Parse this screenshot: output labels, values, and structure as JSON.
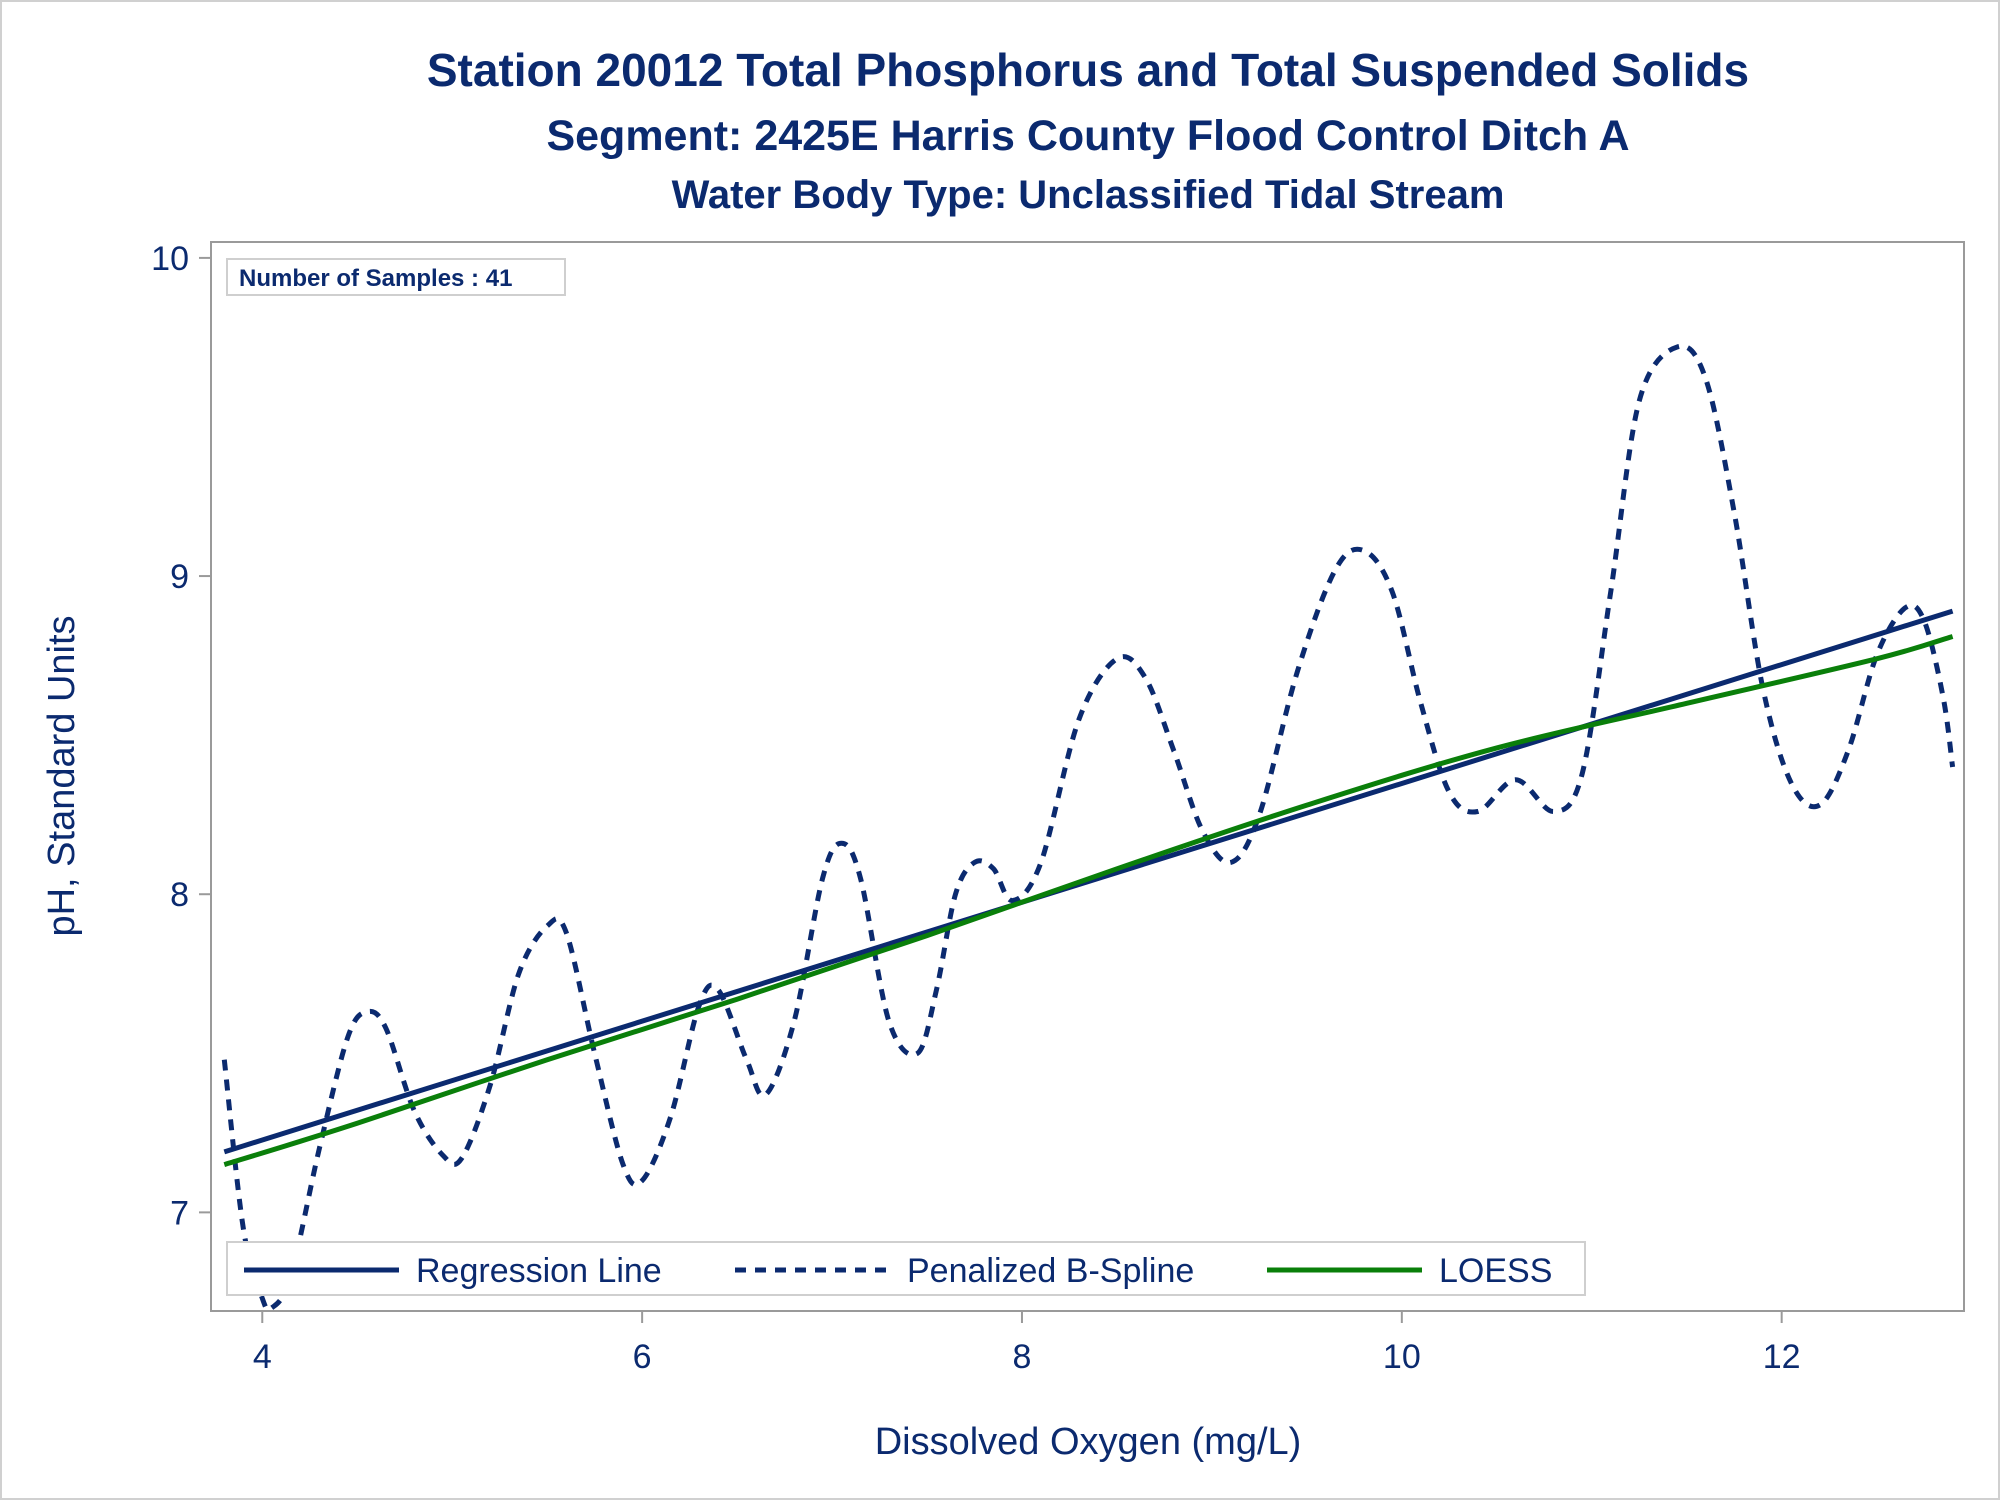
{
  "chart_data": {
    "type": "line",
    "title": "Station 20012  Total Phosphorus and Total Suspended Solids",
    "subtitle": "Segment: 2425E  Harris County Flood Control Ditch A",
    "subtitle2": "Water Body Type: Unclassified Tidal Stream",
    "xlabel": "Dissolved Oxygen (mg/L)",
    "ylabel": "pH, Standard Units",
    "xlim": [
      3.73,
      12.96
    ],
    "ylim": [
      6.69,
      10.05
    ],
    "x_ticks": [
      4,
      6,
      8,
      10,
      12
    ],
    "x_tick_labels": [
      "4",
      "6",
      "8",
      "10",
      "12"
    ],
    "y_ticks": [
      7,
      8,
      9,
      10
    ],
    "y_tick_labels": [
      "7",
      "8",
      "9",
      "10"
    ],
    "grid": false,
    "legend_position": "bottom-inside",
    "inset_label": "Number of Samples : 41",
    "colors": {
      "regression": "#0b2a6f",
      "spline": "#0b2a6f",
      "loess": "#0a7f0a",
      "text": "#0b2a6f",
      "frame": "#9a9a9a"
    },
    "series": [
      {
        "name": "Regression Line",
        "style": "solid",
        "x": [
          3.8,
          12.9
        ],
        "y": [
          7.19,
          8.89
        ]
      },
      {
        "name": "Penalized B-Spline",
        "style": "dashed",
        "x": [
          3.8,
          3.9,
          4.0,
          4.05,
          4.15,
          4.3,
          4.45,
          4.55,
          4.65,
          4.8,
          4.95,
          5.05,
          5.2,
          5.35,
          5.5,
          5.6,
          5.75,
          5.9,
          6.0,
          6.15,
          6.3,
          6.4,
          6.55,
          6.65,
          6.8,
          6.95,
          7.05,
          7.15,
          7.3,
          7.45,
          7.55,
          7.65,
          7.75,
          7.85,
          7.95,
          8.1,
          8.3,
          8.5,
          8.65,
          8.8,
          8.95,
          9.1,
          9.25,
          9.45,
          9.65,
          9.8,
          9.95,
          10.1,
          10.25,
          10.4,
          10.6,
          10.8,
          10.95,
          11.1,
          11.25,
          11.45,
          11.6,
          11.75,
          11.9,
          12.05,
          12.2,
          12.35,
          12.5,
          12.65,
          12.75,
          12.85,
          12.9
        ],
        "y": [
          7.48,
          6.95,
          6.73,
          6.7,
          6.8,
          7.2,
          7.55,
          7.63,
          7.58,
          7.32,
          7.18,
          7.17,
          7.4,
          7.75,
          7.9,
          7.88,
          7.5,
          7.15,
          7.1,
          7.3,
          7.65,
          7.7,
          7.48,
          7.37,
          7.6,
          8.05,
          8.16,
          8.05,
          7.6,
          7.5,
          7.7,
          8.0,
          8.1,
          8.08,
          7.98,
          8.1,
          8.55,
          8.74,
          8.68,
          8.45,
          8.2,
          8.1,
          8.25,
          8.7,
          9.02,
          9.08,
          8.95,
          8.6,
          8.32,
          8.26,
          8.36,
          8.26,
          8.38,
          8.95,
          9.55,
          9.72,
          9.62,
          9.2,
          8.65,
          8.35,
          8.28,
          8.45,
          8.75,
          8.9,
          8.86,
          8.62,
          8.4
        ]
      },
      {
        "name": "LOESS",
        "style": "solid",
        "x": [
          3.8,
          4.5,
          5.5,
          6.5,
          7.5,
          8.5,
          9.5,
          10.5,
          11.5,
          12.5,
          12.9
        ],
        "y": [
          7.15,
          7.28,
          7.48,
          7.67,
          7.87,
          8.08,
          8.28,
          8.46,
          8.6,
          8.74,
          8.81
        ]
      }
    ]
  }
}
